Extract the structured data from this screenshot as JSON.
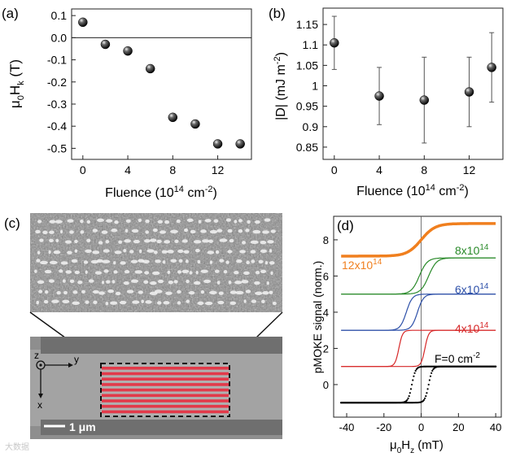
{
  "panels": {
    "a": {
      "label": "(a)",
      "xlabel_main": "Fluence (10",
      "xlabel_sup1": "14",
      "xlabel_mid": " cm",
      "xlabel_sup2": "-2",
      "xlabel_end": ")",
      "ylabel_mu": "μ",
      "ylabel_sub0": "0",
      "ylabel_H": "H",
      "ylabel_subk": "k",
      "ylabel_unit": " (T)"
    },
    "b": {
      "label": "(b)",
      "xlabel_main": "Fluence (10",
      "xlabel_sup1": "14",
      "xlabel_mid": " cm",
      "xlabel_sup2": "-2",
      "xlabel_end": ")",
      "ylabel_main": "|D| (mJ m",
      "ylabel_sup": "-2",
      "ylabel_end": ")"
    },
    "c": {
      "label": "(c)",
      "scale_bar": "1 μm",
      "axis_z": "z",
      "axis_y": "y",
      "axis_x": "x"
    },
    "d": {
      "label": "(d)",
      "xlabel_mu": "μ",
      "xlabel_sub0": "0",
      "xlabel_H": "H",
      "xlabel_subz": "z",
      "xlabel_unit": " (mT)",
      "ylabel": "pMOKE signal (norm.)",
      "curve_labels": {
        "f12": "12x10",
        "f12_sup": "14",
        "f8": "8x10",
        "f8_sup": "14",
        "f6": "6x10",
        "f6_sup": "14",
        "f4": "4x10",
        "f4_sup": "14",
        "f0": "F=0 cm",
        "f0_sup": "-2"
      }
    }
  },
  "watermark": "大数据",
  "colors": {
    "f0": "#000000",
    "f4": "#d62728",
    "f6": "#2c4fa8",
    "f8": "#2a8a2a",
    "f12": "#f07f1e",
    "stripe": "#e23a4a"
  },
  "chart_data": [
    {
      "type": "scatter",
      "panel": "a",
      "x": [
        0,
        2,
        4,
        6,
        8,
        10,
        12,
        14
      ],
      "y": [
        0.07,
        -0.03,
        -0.06,
        -0.14,
        -0.36,
        -0.39,
        -0.48,
        -0.48
      ],
      "xlim": [
        -1,
        15
      ],
      "ylim": [
        -0.55,
        0.13
      ],
      "xticks": [
        0,
        4,
        8,
        12
      ],
      "xtick_labels": [
        "0",
        "4",
        "8",
        "12"
      ],
      "yticks": [
        0.1,
        0.0,
        -0.1,
        -0.2,
        -0.3,
        -0.4,
        -0.5
      ],
      "ytick_labels": [
        "0.1",
        "0.0",
        "-0.1",
        "-0.2",
        "-0.3",
        "-0.4",
        "-0.5"
      ],
      "reference_line_y": 0
    },
    {
      "type": "scatter",
      "panel": "b",
      "x": [
        0,
        4,
        8,
        12,
        14
      ],
      "y": [
        1.105,
        0.975,
        0.965,
        0.985,
        1.045
      ],
      "yerr": [
        0.065,
        0.07,
        0.105,
        0.085,
        0.085
      ],
      "xlim": [
        -1,
        15
      ],
      "ylim": [
        0.82,
        1.19
      ],
      "xticks": [
        0,
        4,
        8,
        12
      ],
      "xtick_labels": [
        "0",
        "4",
        "8",
        "12"
      ],
      "yticks": [
        0.85,
        0.9,
        0.95,
        1.0,
        1.05,
        1.1,
        1.15
      ],
      "ytick_labels": [
        "0.85",
        "0.9",
        "0.95",
        "1",
        "1.05",
        "1.1",
        "1.15"
      ]
    },
    {
      "type": "line",
      "panel": "d",
      "xlim": [
        -47,
        43
      ],
      "ylim": [
        -1.8,
        9.3
      ],
      "xticks": [
        -40,
        -20,
        0,
        20,
        40
      ],
      "xtick_labels": [
        "-40",
        "-20",
        "0",
        "20",
        "40"
      ],
      "yticks": [
        0,
        2,
        4,
        6,
        8
      ],
      "ytick_labels": [
        "0",
        "2",
        "4",
        "6",
        "8"
      ],
      "series": [
        {
          "key": "f0",
          "offset": 0,
          "low": -1,
          "high": 1,
          "hc_up": 4,
          "hc_down": -5,
          "width": 8,
          "style": "dots"
        },
        {
          "key": "f4",
          "offset": 2,
          "low": -1,
          "high": 1,
          "hc_up": 2,
          "hc_down": -12,
          "width": 8,
          "style": "line"
        },
        {
          "key": "f6",
          "offset": 4,
          "low": -1,
          "high": 1,
          "hc_up": -2,
          "hc_down": -8,
          "width": 13,
          "style": "line"
        },
        {
          "key": "f8",
          "offset": 6,
          "low": -1,
          "high": 1,
          "hc_up": 4,
          "hc_down": -1,
          "width": 17,
          "style": "line"
        },
        {
          "key": "f12",
          "offset": 8,
          "low": -0.9,
          "high": 0.9,
          "hc_up": 0,
          "hc_down": 0,
          "width": 30,
          "style": "thick"
        }
      ]
    }
  ]
}
